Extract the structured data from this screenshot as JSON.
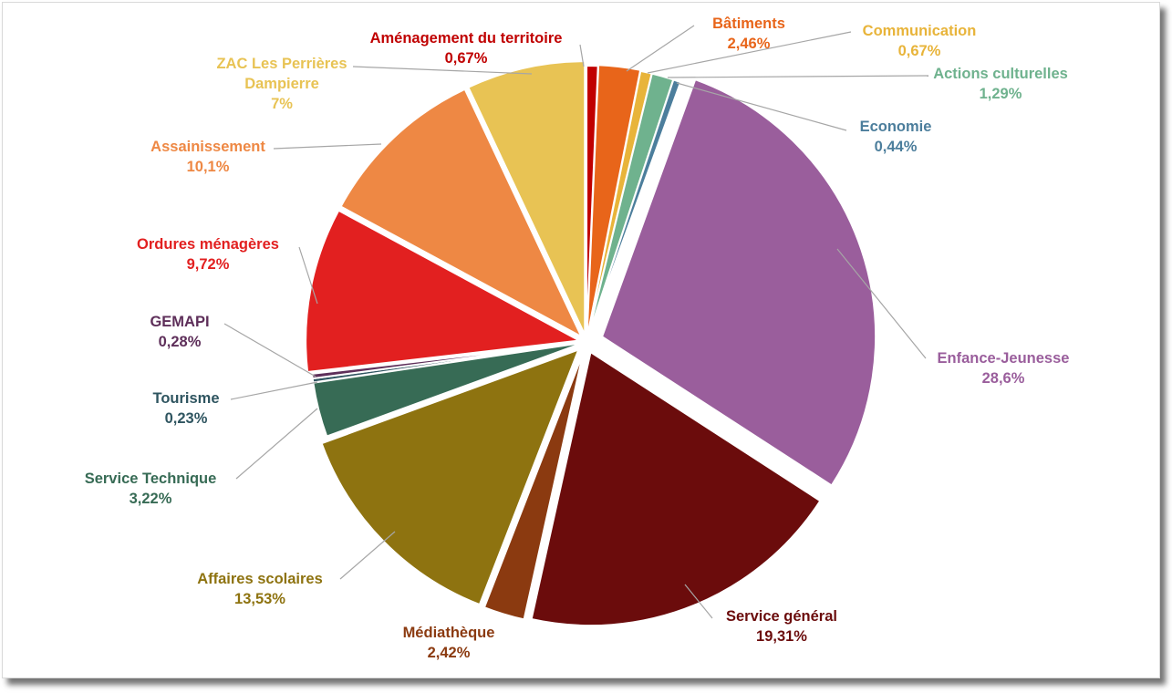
{
  "chart_data": {
    "type": "pie",
    "title": "",
    "series": [
      {
        "name": "Aménagement du territoire",
        "value": 0.67,
        "value_label": "0,67%",
        "color": "#C00000"
      },
      {
        "name": "Bâtiments",
        "value": 2.46,
        "value_label": "2,46%",
        "color": "#E8651A"
      },
      {
        "name": "Communication",
        "value": 0.67,
        "value_label": "0,67%",
        "color": "#E8B43A"
      },
      {
        "name": "Actions culturelles",
        "value": 1.29,
        "value_label": "1,29%",
        "color": "#6FB28E"
      },
      {
        "name": "Economie",
        "value": 0.44,
        "value_label": "0,44%",
        "color": "#4C7E9C"
      },
      {
        "name": "Enfance-Jeunesse",
        "value": 28.6,
        "value_label": "28,6%",
        "color": "#9A5E9C"
      },
      {
        "name": "Service général",
        "value": 19.31,
        "value_label": "19,31%",
        "color": "#6B0C0C"
      },
      {
        "name": "Médiathèque",
        "value": 2.42,
        "value_label": "2,42%",
        "color": "#8B3A10"
      },
      {
        "name": "Affaires scolaires",
        "value": 13.53,
        "value_label": "13,53%",
        "color": "#8E7310"
      },
      {
        "name": "Service Technique",
        "value": 3.22,
        "value_label": "3,22%",
        "color": "#376B55"
      },
      {
        "name": "Tourisme",
        "value": 0.23,
        "value_label": "0,23%",
        "color": "#2F5560"
      },
      {
        "name": "GEMAPI",
        "value": 0.28,
        "value_label": "0,28%",
        "color": "#5E2F5A"
      },
      {
        "name": "Ordures ménagères",
        "value": 9.72,
        "value_label": "9,72%",
        "color": "#E22020"
      },
      {
        "name": "Assainissement",
        "value": 10.1,
        "value_label": "10,1%",
        "color": "#EE8844"
      },
      {
        "name": "ZAC Les Perrières Dampierre",
        "value": 7,
        "value_label": "7%",
        "color": "#E8C354"
      }
    ]
  }
}
